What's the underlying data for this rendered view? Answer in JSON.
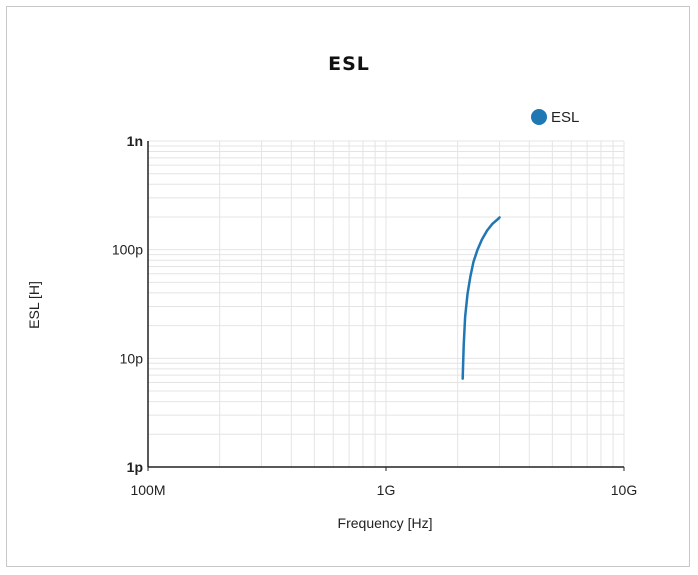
{
  "chart_data": {
    "type": "line",
    "title": "ESL",
    "xlabel": "Frequency [Hz]",
    "ylabel": "ESL [H]",
    "x_scale": "log",
    "y_scale": "log",
    "xlim": [
      100000000,
      10000000000
    ],
    "ylim": [
      1e-12,
      1e-09
    ],
    "x_ticks": [
      {
        "value": 100000000,
        "label": "100M"
      },
      {
        "value": 1000000000,
        "label": "1G"
      },
      {
        "value": 10000000000,
        "label": "10G"
      }
    ],
    "y_ticks": [
      {
        "value": 1e-12,
        "label": "1p"
      },
      {
        "value": 1e-11,
        "label": "10p"
      },
      {
        "value": 1e-10,
        "label": "100p"
      },
      {
        "value": 1e-09,
        "label": "1n"
      }
    ],
    "grid": true,
    "legend_position": "top-right",
    "series": [
      {
        "name": "ESL",
        "color": "#1f77b4",
        "x": [
          2100000000,
          2120000000,
          2150000000,
          2200000000,
          2260000000,
          2330000000,
          2420000000,
          2530000000,
          2660000000,
          2800000000,
          2960000000,
          3000000000
        ],
        "y": [
          6.5e-12,
          1.3e-11,
          2.4e-11,
          3.9e-11,
          5.6e-11,
          7.7e-11,
          9.9e-11,
          1.24e-10,
          1.5e-10,
          1.73e-10,
          1.92e-10,
          1.98e-10
        ]
      }
    ]
  }
}
